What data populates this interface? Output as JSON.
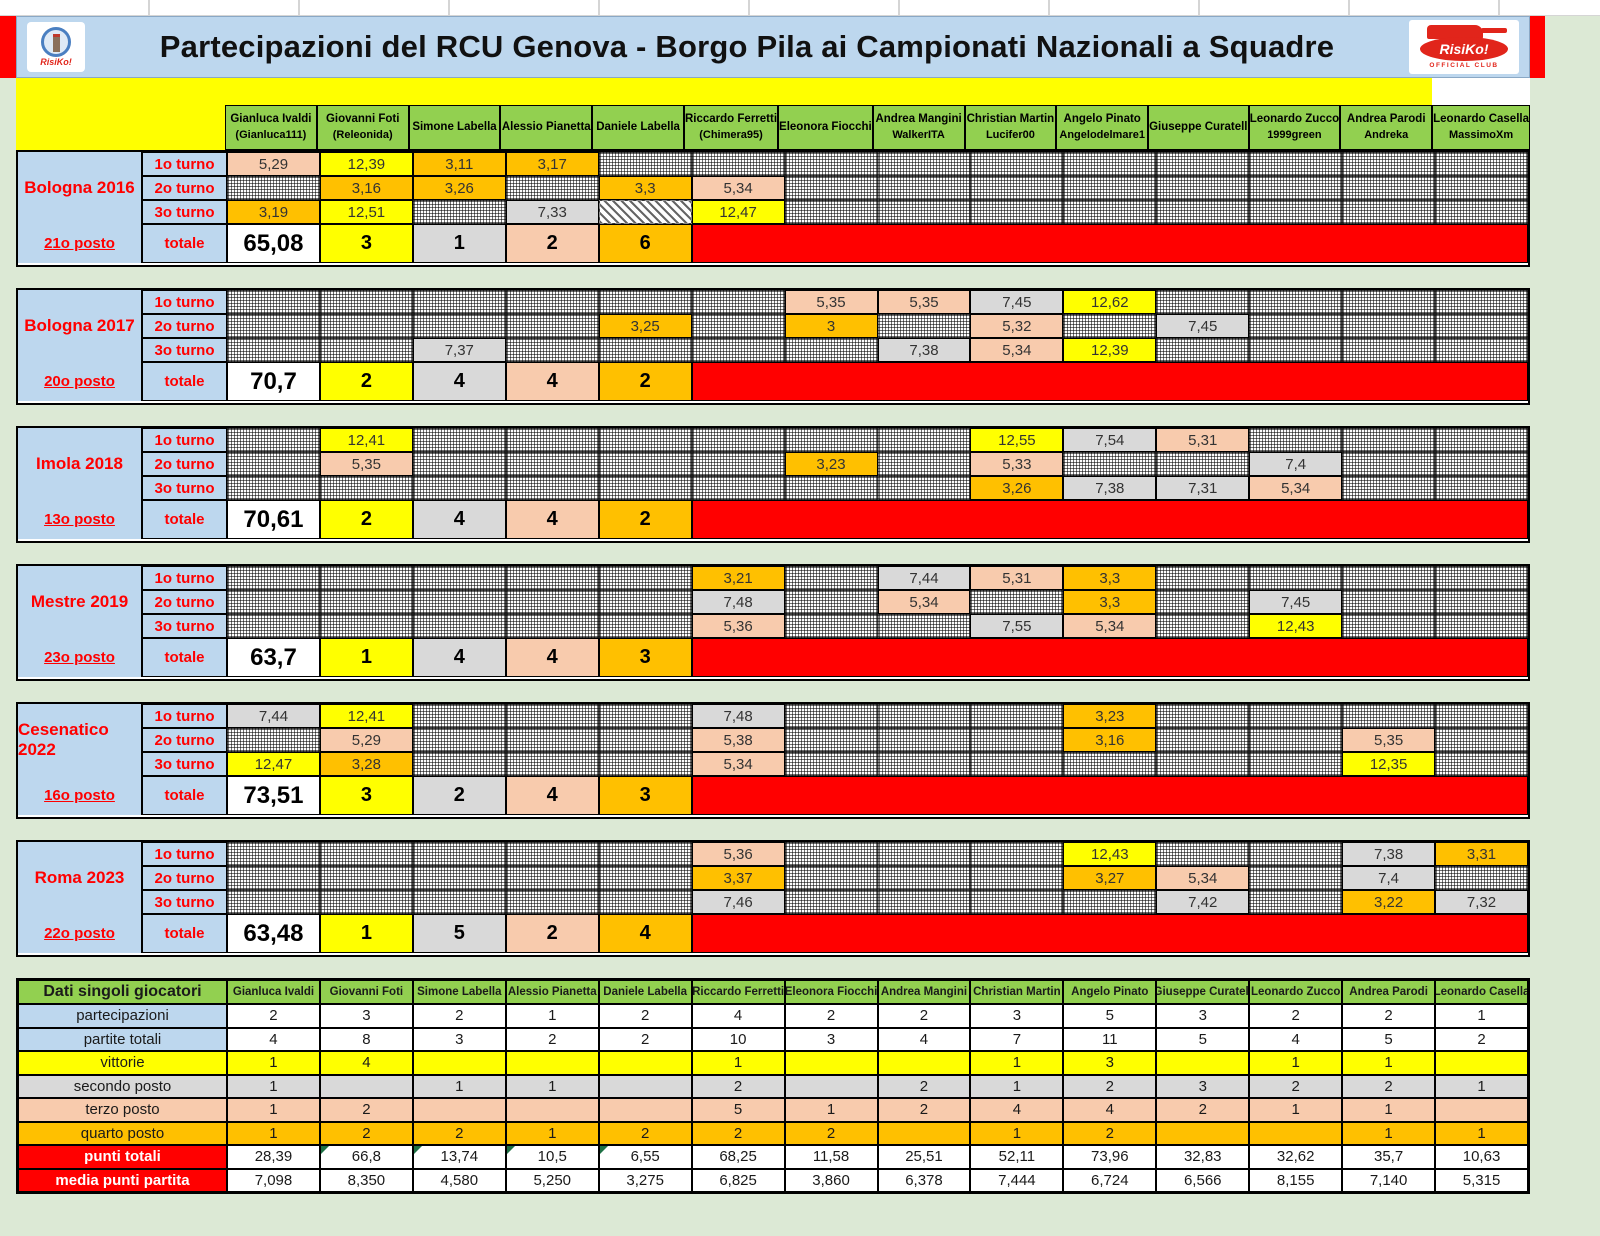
{
  "title": "Partecipazioni del RCU Genova - Borgo Pila ai Campionati Nazionali a Squadre",
  "left_logo": {
    "name": "RisiKo!"
  },
  "right_logo": {
    "name": "RisiKo!",
    "sub": "OFFICIAL CLUB"
  },
  "colors": {
    "first": "#ffff00",
    "second": "#d9d9d9",
    "third": "#f8cbad",
    "fourth": "#ffc000",
    "team_bar": "#ff0000",
    "header_green": "#92d050",
    "label_blue": "#bdd7ee",
    "title_bar": "#bdd7ee",
    "accent_red_text": "#ff0000",
    "page_margin": "#dce9d5"
  },
  "players": [
    {
      "name": "Gianluca Ivaldi",
      "nick": "(Gianluca111)"
    },
    {
      "name": "Giovanni Foti",
      "nick": "(Releonida)"
    },
    {
      "name": "Simone Labella",
      "nick": ""
    },
    {
      "name": "Alessio Pianetta",
      "nick": ""
    },
    {
      "name": "Daniele Labella",
      "nick": ""
    },
    {
      "name": "Riccardo Ferretti",
      "nick": "(Chimera95)"
    },
    {
      "name": "Eleonora Fiocchi",
      "nick": ""
    },
    {
      "name": "Andrea Mangini",
      "nick": "WalkerITA"
    },
    {
      "name": "Christian Martin",
      "nick": "Lucifer00"
    },
    {
      "name": "Angelo Pinato",
      "nick": "Angelodelmare1"
    },
    {
      "name": "Giuseppe Curatell",
      "nick": ""
    },
    {
      "name": "Leonardo Zucco",
      "nick": "1999green"
    },
    {
      "name": "Andrea Parodi",
      "nick": "Andreka"
    },
    {
      "name": "Leonardo Casella",
      "nick": "MassimoXm"
    }
  ],
  "round_labels": [
    "1o turno",
    "2o turno",
    "3o turno",
    "totale"
  ],
  "tournaments": [
    {
      "name": "Bologna 2016",
      "rank": "21o posto",
      "total": "65,08",
      "counts": [
        "3",
        "1",
        "2",
        "6"
      ],
      "rounds": [
        {
          "cells": [
            {
              "i": 0,
              "v": "5,29",
              "t": "third"
            },
            {
              "i": 1,
              "v": "12,39",
              "t": "first"
            },
            {
              "i": 2,
              "v": "3,11",
              "t": "fourth"
            },
            {
              "i": 3,
              "v": "3,17",
              "t": "fourth"
            }
          ]
        },
        {
          "cells": [
            {
              "i": 1,
              "v": "3,16",
              "t": "fourth"
            },
            {
              "i": 2,
              "v": "3,26",
              "t": "fourth"
            },
            {
              "i": 4,
              "v": "3,3",
              "t": "fourth"
            },
            {
              "i": 5,
              "v": "5,34",
              "t": "third"
            }
          ]
        },
        {
          "cells": [
            {
              "i": 0,
              "v": "3,19",
              "t": "fourth"
            },
            {
              "i": 1,
              "v": "12,51",
              "t": "first"
            },
            {
              "i": 3,
              "v": "7,33",
              "t": "second"
            },
            {
              "i": 5,
              "v": "12,47",
              "t": "first"
            }
          ],
          "diag": [
            4
          ]
        }
      ]
    },
    {
      "name": "Bologna 2017",
      "rank": "20o posto",
      "total": "70,7",
      "counts": [
        "2",
        "4",
        "4",
        "2"
      ],
      "rounds": [
        {
          "cells": [
            {
              "i": 6,
              "v": "5,35",
              "t": "third"
            },
            {
              "i": 7,
              "v": "5,35",
              "t": "third"
            },
            {
              "i": 8,
              "v": "7,45",
              "t": "second"
            },
            {
              "i": 9,
              "v": "12,62",
              "t": "first"
            }
          ]
        },
        {
          "cells": [
            {
              "i": 4,
              "v": "3,25",
              "t": "fourth"
            },
            {
              "i": 6,
              "v": "3",
              "t": "fourth"
            },
            {
              "i": 8,
              "v": "5,32",
              "t": "third"
            },
            {
              "i": 10,
              "v": "7,45",
              "t": "second"
            }
          ]
        },
        {
          "cells": [
            {
              "i": 2,
              "v": "7,37",
              "t": "second"
            },
            {
              "i": 7,
              "v": "7,38",
              "t": "second"
            },
            {
              "i": 8,
              "v": "5,34",
              "t": "third"
            },
            {
              "i": 9,
              "v": "12,39",
              "t": "first"
            }
          ]
        }
      ]
    },
    {
      "name": "Imola 2018",
      "rank": "13o posto",
      "total": "70,61",
      "counts": [
        "2",
        "4",
        "4",
        "2"
      ],
      "rounds": [
        {
          "cells": [
            {
              "i": 1,
              "v": "12,41",
              "t": "first"
            },
            {
              "i": 8,
              "v": "12,55",
              "t": "first"
            },
            {
              "i": 9,
              "v": "7,54",
              "t": "second"
            },
            {
              "i": 10,
              "v": "5,31",
              "t": "third"
            }
          ]
        },
        {
          "cells": [
            {
              "i": 1,
              "v": "5,35",
              "t": "third"
            },
            {
              "i": 6,
              "v": "3,23",
              "t": "fourth"
            },
            {
              "i": 8,
              "v": "5,33",
              "t": "third"
            },
            {
              "i": 11,
              "v": "7,4",
              "t": "second"
            }
          ]
        },
        {
          "cells": [
            {
              "i": 8,
              "v": "3,26",
              "t": "fourth"
            },
            {
              "i": 9,
              "v": "7,38",
              "t": "second"
            },
            {
              "i": 10,
              "v": "7,31",
              "t": "second"
            },
            {
              "i": 11,
              "v": "5,34",
              "t": "third"
            }
          ]
        }
      ]
    },
    {
      "name": "Mestre 2019",
      "rank": "23o posto",
      "total": "63,7",
      "counts": [
        "1",
        "4",
        "4",
        "3"
      ],
      "rounds": [
        {
          "cells": [
            {
              "i": 5,
              "v": "3,21",
              "t": "fourth"
            },
            {
              "i": 7,
              "v": "7,44",
              "t": "second"
            },
            {
              "i": 8,
              "v": "5,31",
              "t": "third"
            },
            {
              "i": 9,
              "v": "3,3",
              "t": "fourth"
            }
          ]
        },
        {
          "cells": [
            {
              "i": 5,
              "v": "7,48",
              "t": "second"
            },
            {
              "i": 7,
              "v": "5,34",
              "t": "third"
            },
            {
              "i": 9,
              "v": "3,3",
              "t": "fourth"
            },
            {
              "i": 11,
              "v": "7,45",
              "t": "second"
            }
          ]
        },
        {
          "cells": [
            {
              "i": 5,
              "v": "5,36",
              "t": "third"
            },
            {
              "i": 8,
              "v": "7,55",
              "t": "second"
            },
            {
              "i": 9,
              "v": "5,34",
              "t": "third"
            },
            {
              "i": 11,
              "v": "12,43",
              "t": "first"
            }
          ]
        }
      ]
    },
    {
      "name": "Cesenatico 2022",
      "rank": "16o posto",
      "total": "73,51",
      "counts": [
        "3",
        "2",
        "4",
        "3"
      ],
      "rounds": [
        {
          "cells": [
            {
              "i": 0,
              "v": "7,44",
              "t": "second"
            },
            {
              "i": 1,
              "v": "12,41",
              "t": "first"
            },
            {
              "i": 5,
              "v": "7,48",
              "t": "second"
            },
            {
              "i": 9,
              "v": "3,23",
              "t": "fourth"
            }
          ]
        },
        {
          "cells": [
            {
              "i": 1,
              "v": "5,29",
              "t": "third"
            },
            {
              "i": 5,
              "v": "5,38",
              "t": "third"
            },
            {
              "i": 9,
              "v": "3,16",
              "t": "fourth"
            },
            {
              "i": 12,
              "v": "5,35",
              "t": "third"
            }
          ]
        },
        {
          "cells": [
            {
              "i": 0,
              "v": "12,47",
              "t": "first"
            },
            {
              "i": 1,
              "v": "3,28",
              "t": "fourth"
            },
            {
              "i": 5,
              "v": "5,34",
              "t": "third"
            },
            {
              "i": 12,
              "v": "12,35",
              "t": "first"
            }
          ]
        }
      ]
    },
    {
      "name": "Roma 2023",
      "rank": "22o posto",
      "total": "63,48",
      "counts": [
        "1",
        "5",
        "2",
        "4"
      ],
      "rounds": [
        {
          "cells": [
            {
              "i": 5,
              "v": "5,36",
              "t": "third"
            },
            {
              "i": 9,
              "v": "12,43",
              "t": "first"
            },
            {
              "i": 12,
              "v": "7,38",
              "t": "second"
            },
            {
              "i": 13,
              "v": "3,31",
              "t": "fourth"
            }
          ]
        },
        {
          "cells": [
            {
              "i": 5,
              "v": "3,37",
              "t": "fourth"
            },
            {
              "i": 9,
              "v": "3,27",
              "t": "fourth"
            },
            {
              "i": 10,
              "v": "5,34",
              "t": "third"
            },
            {
              "i": 12,
              "v": "7,4",
              "t": "second"
            }
          ]
        },
        {
          "cells": [
            {
              "i": 5,
              "v": "7,46",
              "t": "second"
            },
            {
              "i": 10,
              "v": "7,42",
              "t": "second"
            },
            {
              "i": 12,
              "v": "3,22",
              "t": "fourth"
            },
            {
              "i": 13,
              "v": "7,32",
              "t": "second"
            }
          ]
        }
      ]
    }
  ],
  "summary": {
    "header": "Dati singoli giocatori",
    "rows": [
      {
        "label": "partecipazioni",
        "style": "plain",
        "values": [
          "2",
          "3",
          "2",
          "1",
          "2",
          "4",
          "2",
          "2",
          "3",
          "5",
          "3",
          "2",
          "2",
          "1"
        ]
      },
      {
        "label": "partite totali",
        "style": "plain",
        "values": [
          "4",
          "8",
          "3",
          "2",
          "2",
          "10",
          "3",
          "4",
          "7",
          "11",
          "5",
          "4",
          "5",
          "2"
        ]
      },
      {
        "label": "vittorie",
        "style": "first",
        "values": [
          "1",
          "4",
          "",
          "",
          "",
          "1",
          "",
          "",
          "1",
          "3",
          "",
          "1",
          "1",
          ""
        ]
      },
      {
        "label": "secondo posto",
        "style": "second",
        "values": [
          "1",
          "",
          "1",
          "1",
          "",
          "2",
          "",
          "2",
          "1",
          "2",
          "3",
          "2",
          "2",
          "1"
        ]
      },
      {
        "label": "terzo posto",
        "style": "third",
        "values": [
          "1",
          "2",
          "",
          "",
          "",
          "5",
          "1",
          "2",
          "4",
          "4",
          "2",
          "1",
          "1",
          ""
        ]
      },
      {
        "label": "quarto posto",
        "style": "fourth",
        "values": [
          "1",
          "2",
          "2",
          "1",
          "2",
          "2",
          "2",
          "",
          "1",
          "2",
          "",
          "",
          "1",
          "1"
        ]
      },
      {
        "label": "punti totali",
        "style": "red",
        "values": [
          "28,39",
          "66,8",
          "13,74",
          "10,5",
          "6,55",
          "68,25",
          "11,58",
          "25,51",
          "52,11",
          "73,96",
          "32,83",
          "32,62",
          "35,7",
          "10,63"
        ],
        "flags": [
          1,
          2,
          3,
          4
        ]
      },
      {
        "label": "media punti partita",
        "style": "red",
        "values": [
          "7,098",
          "8,350",
          "4,580",
          "5,250",
          "3,275",
          "6,825",
          "3,860",
          "6,378",
          "7,444",
          "6,724",
          "6,566",
          "8,155",
          "7,140",
          "5,315"
        ]
      }
    ]
  }
}
